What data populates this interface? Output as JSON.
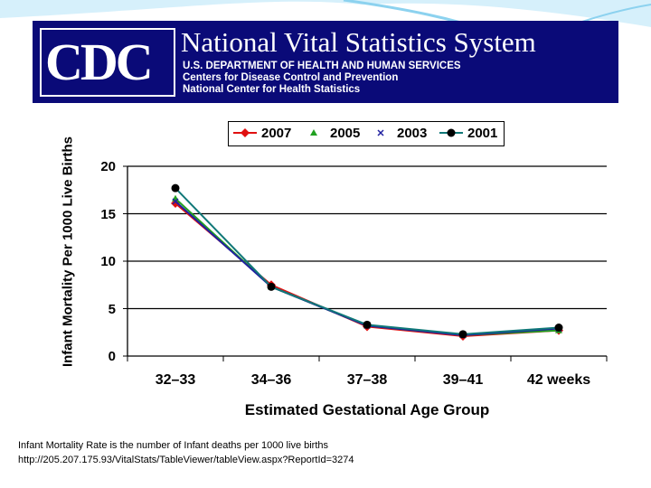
{
  "banner": {
    "logo": "CDC",
    "title": "National Vital Statistics System",
    "line1": "U.S. DEPARTMENT OF HEALTH AND HUMAN SERVICES",
    "line2": "Centers for Disease Control and Prevention",
    "line3": "National Center for Health Statistics",
    "bg_color": "#0a0a78"
  },
  "chart_data": {
    "type": "line",
    "title": "",
    "xlabel": "Estimated Gestational Age Group",
    "ylabel": "Infant Mortality Per 1000 Live Births",
    "categories": [
      "32–33",
      "34–36",
      "37–38",
      "39–41",
      "42 weeks"
    ],
    "ylim": [
      0,
      20
    ],
    "yticks": [
      0,
      5,
      10,
      15,
      20
    ],
    "grid": true,
    "legend": "top",
    "series": [
      {
        "name": "2007",
        "color": "#e01010",
        "marker": "diamond",
        "values": [
          16.1,
          7.5,
          3.1,
          2.1,
          2.7
        ]
      },
      {
        "name": "2005",
        "color": "#20a020",
        "marker": "triangle",
        "values": [
          16.6,
          7.3,
          3.2,
          2.2,
          2.7
        ]
      },
      {
        "name": "2003",
        "color": "#2020a0",
        "marker": "x",
        "values": [
          16.3,
          7.3,
          3.2,
          2.2,
          2.9
        ]
      },
      {
        "name": "2001",
        "color": "#107878",
        "marker": "circle",
        "values": [
          17.7,
          7.3,
          3.3,
          2.3,
          3.0
        ]
      }
    ]
  },
  "notes": {
    "definition": "Infant Mortality Rate is the number of Infant deaths per 1000 live births",
    "source": "http://205.207.175.93/VitalStats/TableViewer/tableView.aspx?ReportId=3274"
  }
}
